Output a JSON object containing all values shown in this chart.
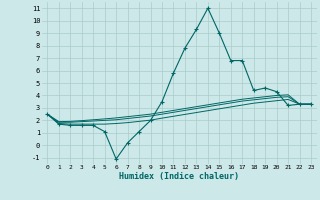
{
  "xlabel": "Humidex (Indice chaleur)",
  "bg_color": "#cce8e8",
  "grid_color": "#aacccc",
  "line_color": "#006666",
  "xlim": [
    -0.5,
    23.5
  ],
  "ylim": [
    -1.5,
    11.5
  ],
  "xticks": [
    0,
    1,
    2,
    3,
    4,
    5,
    6,
    7,
    8,
    9,
    10,
    11,
    12,
    13,
    14,
    15,
    16,
    17,
    18,
    19,
    20,
    21,
    22,
    23
  ],
  "yticks": [
    -1,
    0,
    1,
    2,
    3,
    4,
    5,
    6,
    7,
    8,
    9,
    10,
    11
  ],
  "main_series": [
    2.5,
    1.7,
    1.6,
    1.6,
    1.6,
    1.1,
    -1.1,
    0.2,
    1.1,
    2.0,
    3.5,
    5.8,
    7.8,
    9.3,
    11.0,
    9.0,
    6.8,
    6.8,
    4.4,
    4.6,
    4.3,
    3.2,
    3.3,
    3.3
  ],
  "line2": [
    2.5,
    1.85,
    1.85,
    1.9,
    1.95,
    2.0,
    2.05,
    2.15,
    2.25,
    2.35,
    2.5,
    2.65,
    2.8,
    2.95,
    3.1,
    3.25,
    3.4,
    3.55,
    3.65,
    3.75,
    3.85,
    3.9,
    3.3,
    3.3
  ],
  "line3": [
    2.5,
    1.9,
    1.92,
    1.98,
    2.05,
    2.12,
    2.2,
    2.3,
    2.4,
    2.5,
    2.65,
    2.8,
    2.95,
    3.1,
    3.25,
    3.4,
    3.55,
    3.7,
    3.8,
    3.9,
    4.0,
    4.05,
    3.3,
    3.3
  ],
  "line4": [
    2.5,
    1.75,
    1.7,
    1.7,
    1.7,
    1.7,
    1.75,
    1.82,
    1.92,
    2.02,
    2.18,
    2.33,
    2.48,
    2.63,
    2.78,
    2.93,
    3.08,
    3.23,
    3.38,
    3.48,
    3.58,
    3.68,
    3.3,
    3.3
  ]
}
